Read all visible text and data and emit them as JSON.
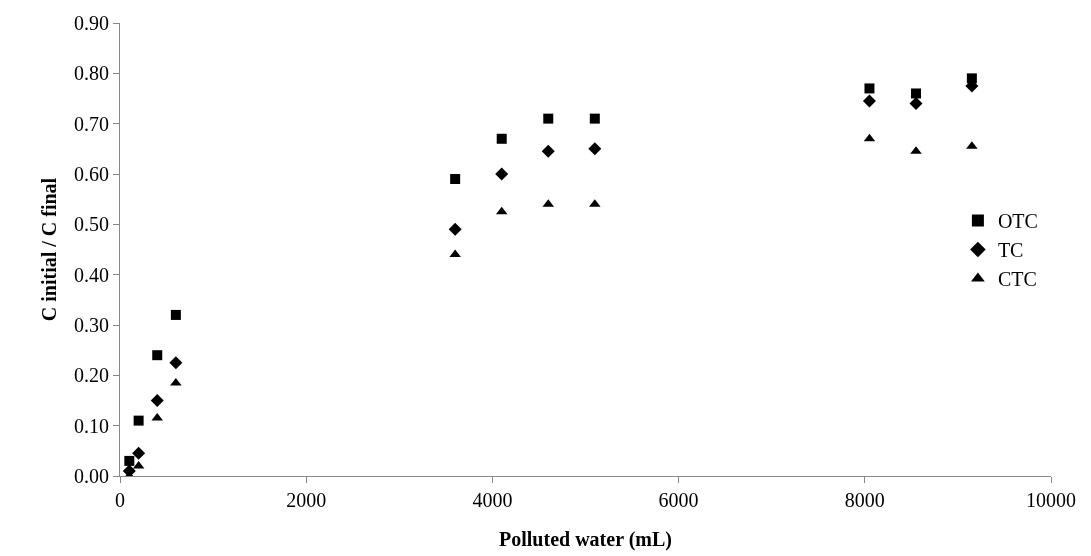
{
  "chart_data": {
    "type": "scatter",
    "xlabel": "Polluted water (mL)",
    "ylabel": "C initial / C final",
    "x": [
      100,
      200,
      400,
      600,
      3600,
      4100,
      4600,
      5100,
      8050,
      8550,
      9150
    ],
    "series": [
      {
        "name": "OTC",
        "color": "#000000",
        "marker": "square",
        "values": [
          0.03,
          0.11,
          0.24,
          0.32,
          0.59,
          0.67,
          0.71,
          0.71,
          0.77,
          0.76,
          0.79
        ]
      },
      {
        "name": "TC",
        "color": "#000000",
        "marker": "diamond",
        "values": [
          0.01,
          0.045,
          0.15,
          0.225,
          0.49,
          0.6,
          0.645,
          0.65,
          0.745,
          0.74,
          0.775
        ]
      },
      {
        "name": "CTC",
        "color": "#000000",
        "marker": "triangle",
        "values": [
          0.0,
          0.02,
          0.115,
          0.185,
          0.44,
          0.525,
          0.54,
          0.54,
          0.67,
          0.645,
          0.655
        ]
      }
    ],
    "xlim": [
      0,
      10000
    ],
    "xticks": [
      0,
      2000,
      4000,
      6000,
      8000,
      10000
    ],
    "ylim": [
      0,
      0.9
    ],
    "yticks": [
      {
        "value": 0,
        "label": "0.00"
      },
      {
        "value": 0.1,
        "label": "0.10"
      },
      {
        "value": 0.2,
        "label": "0.20"
      },
      {
        "value": 0.3,
        "label": "0.30"
      },
      {
        "value": 0.4,
        "label": "0.40"
      },
      {
        "value": 0.5,
        "label": "0.50"
      },
      {
        "value": 0.6,
        "label": "0.60"
      },
      {
        "value": 0.7,
        "label": "0.70"
      },
      {
        "value": 0.8,
        "label": "0.80"
      },
      {
        "value": 0.9,
        "label": "0.90"
      }
    ],
    "grid": false,
    "legend": "right"
  }
}
